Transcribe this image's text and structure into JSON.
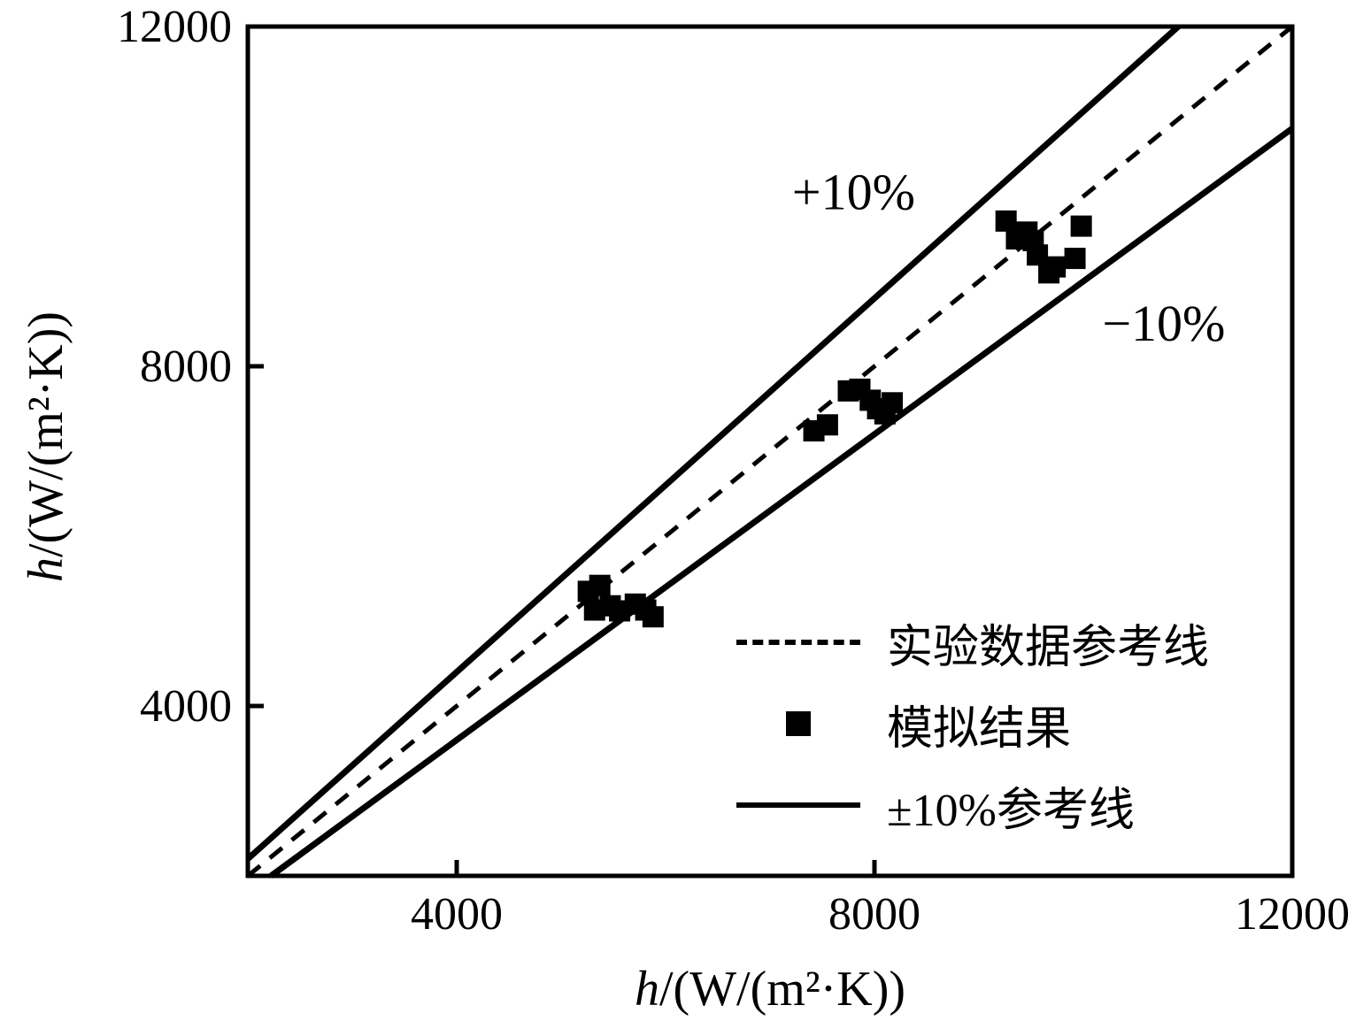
{
  "chart_data": {
    "type": "scatter",
    "title": "",
    "xlabel_italic": "h",
    "xlabel_rest": "/(W/(m²·K))",
    "ylabel_italic": "h",
    "ylabel_rest": "/(W/(m²·K))",
    "xlim": [
      2000,
      12000
    ],
    "ylim": [
      2000,
      12000
    ],
    "xticks": [
      4000,
      8000,
      12000
    ],
    "yticks": [
      4000,
      8000,
      12000
    ],
    "grid": false,
    "color": "#000000",
    "background": "#ffffff",
    "lines": [
      {
        "name": "experimental-reference-line",
        "label": "实验数据参考线",
        "slope": 1,
        "dashed": true
      },
      {
        "name": "plus-10-percent-line",
        "label": "+10%",
        "slope": 1.1,
        "dashed": false
      },
      {
        "name": "minus-10-percent-line",
        "label": "−10%",
        "slope": 0.9,
        "dashed": false
      }
    ],
    "points_label": "模拟结果",
    "points": [
      [
        5260,
        5350
      ],
      [
        5370,
        5420
      ],
      [
        5320,
        5130
      ],
      [
        5470,
        5180
      ],
      [
        5560,
        5120
      ],
      [
        5710,
        5200
      ],
      [
        5810,
        5130
      ],
      [
        5880,
        5050
      ],
      [
        7420,
        7240
      ],
      [
        7550,
        7310
      ],
      [
        7750,
        7710
      ],
      [
        7860,
        7730
      ],
      [
        7960,
        7600
      ],
      [
        8030,
        7500
      ],
      [
        8100,
        7440
      ],
      [
        8170,
        7570
      ],
      [
        9260,
        9710
      ],
      [
        9360,
        9500
      ],
      [
        9460,
        9580
      ],
      [
        9520,
        9480
      ],
      [
        9560,
        9310
      ],
      [
        9670,
        9100
      ],
      [
        9730,
        9170
      ],
      [
        9920,
        9270
      ],
      [
        9980,
        9650
      ]
    ],
    "annotations": [
      {
        "text": "+10%",
        "x": 7800,
        "y": 9850
      },
      {
        "text": "−10%",
        "x": 10770,
        "y": 8300
      }
    ],
    "legend": {
      "position": "lower-right",
      "items": [
        {
          "label": "实验数据参考线",
          "swatch": "dashed"
        },
        {
          "label": "模拟结果",
          "swatch": "square"
        },
        {
          "label": "±10%参考线",
          "swatch": "solid"
        }
      ]
    }
  }
}
